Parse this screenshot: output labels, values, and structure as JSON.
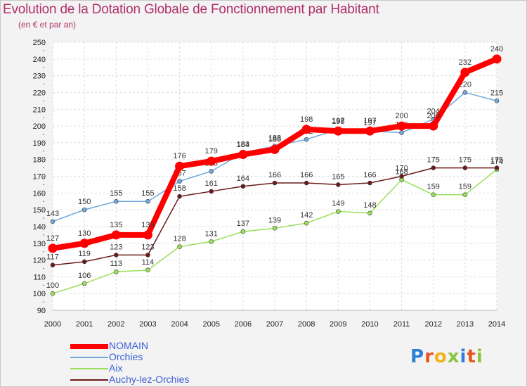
{
  "chart_data": {
    "type": "line",
    "title": "Evolution de la Dotation Globale de Fonctionnement par Habitant",
    "subtitle": "(en € et par an)",
    "xlabel": "",
    "ylabel": "",
    "categories": [
      "2000",
      "2001",
      "2002",
      "2003",
      "2004",
      "2005",
      "2006",
      "2007",
      "2008",
      "2009",
      "2010",
      "2011",
      "2012",
      "2013",
      "2014"
    ],
    "ylim": [
      90,
      250
    ],
    "yticks": [
      90,
      100,
      110,
      120,
      130,
      140,
      150,
      160,
      170,
      180,
      190,
      200,
      210,
      220,
      230,
      240,
      250
    ],
    "grid": true,
    "series": [
      {
        "name": "NOMAIN",
        "color": "#ff0000",
        "values": [
          127,
          130,
          135,
          135,
          176,
          179,
          183,
          186,
          198,
          197,
          197,
          200,
          200,
          232,
          240
        ]
      },
      {
        "name": "Orchies",
        "color": "#6fa8dc",
        "values": [
          143,
          150,
          155,
          155,
          167,
          173,
          184,
          188,
          192,
          198,
          197,
          196,
          204,
          220,
          215
        ]
      },
      {
        "name": "Aix",
        "color": "#99e05a",
        "values": [
          100,
          106,
          113,
          114,
          128,
          131,
          137,
          139,
          142,
          149,
          148,
          168,
          159,
          159,
          174
        ]
      },
      {
        "name": "Auchy-lez-Orchies",
        "color": "#6b1a1a",
        "values": [
          117,
          119,
          123,
          123,
          158,
          161,
          164,
          166,
          166,
          165,
          166,
          170,
          175,
          175,
          175
        ]
      }
    ]
  },
  "brand": "Proxiti"
}
